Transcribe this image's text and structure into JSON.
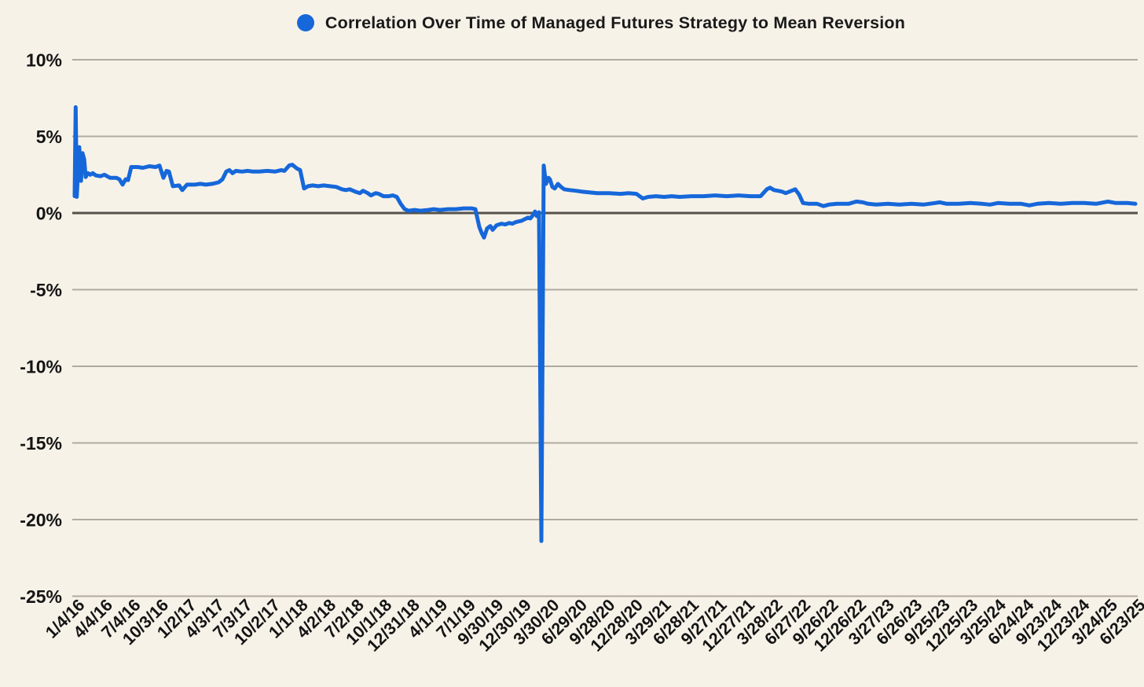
{
  "page": {
    "background": "#f7f2e8"
  },
  "legend": {
    "marker": "circle",
    "label": "Correlation Over Time of Managed Futures Strategy to Mean Reversion"
  },
  "chart_data": {
    "type": "line",
    "title": "Correlation Over Time of Managed Futures Strategy to Mean Reversion",
    "legend_position": "top-center",
    "grid": true,
    "x_axis": {
      "range": [
        "1/4/16",
        "6/23/25"
      ],
      "tick_labels": [
        "1/4/16",
        "4/4/16",
        "7/4/16",
        "10/3/16",
        "1/2/17",
        "4/3/17",
        "7/3/17",
        "10/2/17",
        "1/1/18",
        "4/2/18",
        "7/2/18",
        "10/1/18",
        "12/31/18",
        "4/1/19",
        "7/1/19",
        "9/30/19",
        "12/30/19",
        "3/30/20",
        "6/29/20",
        "9/28/20",
        "12/28/20",
        "3/29/21",
        "6/28/21",
        "9/27/21",
        "12/27/21",
        "3/28/22",
        "6/27/22",
        "9/26/22",
        "12/26/22",
        "3/27/23",
        "6/26/23",
        "9/25/23",
        "12/25/23",
        "3/25/24",
        "6/24/24",
        "9/23/24",
        "12/23/24",
        "3/24/25",
        "6/23/25"
      ]
    },
    "y_axis": {
      "unit": "%",
      "lim": [
        -25,
        10
      ],
      "ticks": [
        {
          "value": 10,
          "label": "10%"
        },
        {
          "value": 5,
          "label": "5%"
        },
        {
          "value": 0,
          "label": "0%"
        },
        {
          "value": -5,
          "label": "-5%"
        },
        {
          "value": -10,
          "label": "-10%"
        },
        {
          "value": -15,
          "label": "-15%"
        },
        {
          "value": -20,
          "label": "-20%"
        },
        {
          "value": -25,
          "label": "-25%"
        }
      ]
    },
    "colors": {
      "line": "#1667d9",
      "gridline": "#b0aaa0",
      "zero_line": "#55524c",
      "text": "#141414",
      "background": "#f7f2e8"
    },
    "series": [
      {
        "name": "Correlation Over Time of Managed Futures Strategy to Mean Reversion",
        "color": "#1667d9",
        "points_format": "[x_fraction_of_time_axis_1/4/16_to_6/23/25, correlation_percent]",
        "points": [
          [
            0.0,
            1.1
          ],
          [
            0.001,
            6.9
          ],
          [
            0.002,
            1.05
          ],
          [
            0.0044,
            4.3
          ],
          [
            0.006,
            2.1
          ],
          [
            0.0074,
            3.9
          ],
          [
            0.009,
            3.5
          ],
          [
            0.0104,
            2.35
          ],
          [
            0.0126,
            2.6
          ],
          [
            0.0148,
            2.5
          ],
          [
            0.017,
            2.6
          ],
          [
            0.02,
            2.45
          ],
          [
            0.0244,
            2.4
          ],
          [
            0.0281,
            2.5
          ],
          [
            0.0333,
            2.3
          ],
          [
            0.0393,
            2.3
          ],
          [
            0.0422,
            2.2
          ],
          [
            0.0452,
            1.85
          ],
          [
            0.0481,
            2.2
          ],
          [
            0.0504,
            2.15
          ],
          [
            0.0533,
            3.0
          ],
          [
            0.0593,
            3.0
          ],
          [
            0.0644,
            2.95
          ],
          [
            0.0704,
            3.05
          ],
          [
            0.0763,
            3.0
          ],
          [
            0.08,
            3.1
          ],
          [
            0.0837,
            2.3
          ],
          [
            0.0867,
            2.75
          ],
          [
            0.0889,
            2.7
          ],
          [
            0.0926,
            1.75
          ],
          [
            0.0985,
            1.8
          ],
          [
            0.1015,
            1.5
          ],
          [
            0.1059,
            1.85
          ],
          [
            0.1133,
            1.85
          ],
          [
            0.1185,
            1.9
          ],
          [
            0.1237,
            1.85
          ],
          [
            0.1296,
            1.9
          ],
          [
            0.1356,
            2.0
          ],
          [
            0.1393,
            2.2
          ],
          [
            0.143,
            2.7
          ],
          [
            0.1459,
            2.8
          ],
          [
            0.1489,
            2.6
          ],
          [
            0.1519,
            2.75
          ],
          [
            0.1578,
            2.7
          ],
          [
            0.163,
            2.75
          ],
          [
            0.1681,
            2.7
          ],
          [
            0.1741,
            2.7
          ],
          [
            0.1815,
            2.75
          ],
          [
            0.1889,
            2.7
          ],
          [
            0.1948,
            2.8
          ],
          [
            0.1978,
            2.75
          ],
          [
            0.2022,
            3.1
          ],
          [
            0.2052,
            3.15
          ],
          [
            0.2096,
            2.9
          ],
          [
            0.2126,
            2.8
          ],
          [
            0.2163,
            1.6
          ],
          [
            0.22,
            1.75
          ],
          [
            0.2244,
            1.8
          ],
          [
            0.2296,
            1.75
          ],
          [
            0.2348,
            1.8
          ],
          [
            0.2407,
            1.75
          ],
          [
            0.2467,
            1.7
          ],
          [
            0.2519,
            1.55
          ],
          [
            0.2556,
            1.5
          ],
          [
            0.2593,
            1.55
          ],
          [
            0.2644,
            1.4
          ],
          [
            0.2689,
            1.3
          ],
          [
            0.2719,
            1.45
          ],
          [
            0.2763,
            1.3
          ],
          [
            0.2793,
            1.15
          ],
          [
            0.2837,
            1.3
          ],
          [
            0.2867,
            1.25
          ],
          [
            0.2911,
            1.1
          ],
          [
            0.2963,
            1.1
          ],
          [
            0.3,
            1.15
          ],
          [
            0.3037,
            1.05
          ],
          [
            0.3074,
            0.6
          ],
          [
            0.3111,
            0.25
          ],
          [
            0.3148,
            0.15
          ],
          [
            0.3207,
            0.2
          ],
          [
            0.3259,
            0.15
          ],
          [
            0.3333,
            0.2
          ],
          [
            0.3385,
            0.25
          ],
          [
            0.3444,
            0.2
          ],
          [
            0.3519,
            0.25
          ],
          [
            0.3593,
            0.25
          ],
          [
            0.3667,
            0.3
          ],
          [
            0.3741,
            0.3
          ],
          [
            0.3778,
            0.25
          ],
          [
            0.3815,
            -0.9
          ],
          [
            0.3837,
            -1.3
          ],
          [
            0.3859,
            -1.6
          ],
          [
            0.3889,
            -1.0
          ],
          [
            0.3919,
            -0.85
          ],
          [
            0.3941,
            -1.1
          ],
          [
            0.3978,
            -0.8
          ],
          [
            0.4022,
            -0.7
          ],
          [
            0.4059,
            -0.75
          ],
          [
            0.4096,
            -0.65
          ],
          [
            0.4126,
            -0.7
          ],
          [
            0.4156,
            -0.6
          ],
          [
            0.4185,
            -0.55
          ],
          [
            0.4215,
            -0.5
          ],
          [
            0.4244,
            -0.4
          ],
          [
            0.4274,
            -0.3
          ],
          [
            0.4296,
            -0.35
          ],
          [
            0.4319,
            -0.15
          ],
          [
            0.4341,
            0.1
          ],
          [
            0.4356,
            -0.2
          ],
          [
            0.4378,
            0.05
          ],
          [
            0.44,
            -21.4
          ],
          [
            0.4422,
            3.1
          ],
          [
            0.4444,
            1.9
          ],
          [
            0.4467,
            2.3
          ],
          [
            0.4481,
            2.2
          ],
          [
            0.4504,
            1.7
          ],
          [
            0.4526,
            1.6
          ],
          [
            0.4556,
            1.9
          ],
          [
            0.4585,
            1.7
          ],
          [
            0.4615,
            1.55
          ],
          [
            0.4667,
            1.5
          ],
          [
            0.4726,
            1.45
          ],
          [
            0.4778,
            1.4
          ],
          [
            0.4852,
            1.35
          ],
          [
            0.4926,
            1.3
          ],
          [
            0.5037,
            1.3
          ],
          [
            0.5148,
            1.25
          ],
          [
            0.5222,
            1.3
          ],
          [
            0.5296,
            1.25
          ],
          [
            0.5356,
            0.95
          ],
          [
            0.5407,
            1.05
          ],
          [
            0.5481,
            1.1
          ],
          [
            0.5556,
            1.05
          ],
          [
            0.563,
            1.1
          ],
          [
            0.5704,
            1.05
          ],
          [
            0.5815,
            1.1
          ],
          [
            0.5926,
            1.1
          ],
          [
            0.6037,
            1.15
          ],
          [
            0.6148,
            1.1
          ],
          [
            0.6259,
            1.15
          ],
          [
            0.637,
            1.1
          ],
          [
            0.6467,
            1.1
          ],
          [
            0.6526,
            1.55
          ],
          [
            0.6556,
            1.65
          ],
          [
            0.6593,
            1.5
          ],
          [
            0.663,
            1.45
          ],
          [
            0.6667,
            1.4
          ],
          [
            0.6704,
            1.3
          ],
          [
            0.6741,
            1.4
          ],
          [
            0.6793,
            1.55
          ],
          [
            0.683,
            1.2
          ],
          [
            0.6867,
            0.65
          ],
          [
            0.6926,
            0.6
          ],
          [
            0.7,
            0.6
          ],
          [
            0.7059,
            0.45
          ],
          [
            0.7111,
            0.55
          ],
          [
            0.7185,
            0.6
          ],
          [
            0.7296,
            0.6
          ],
          [
            0.737,
            0.75
          ],
          [
            0.743,
            0.7
          ],
          [
            0.7481,
            0.6
          ],
          [
            0.7556,
            0.55
          ],
          [
            0.7667,
            0.6
          ],
          [
            0.7778,
            0.55
          ],
          [
            0.7889,
            0.6
          ],
          [
            0.8,
            0.55
          ],
          [
            0.8111,
            0.65
          ],
          [
            0.8156,
            0.7
          ],
          [
            0.8222,
            0.6
          ],
          [
            0.8333,
            0.6
          ],
          [
            0.8444,
            0.65
          ],
          [
            0.8556,
            0.6
          ],
          [
            0.863,
            0.55
          ],
          [
            0.8704,
            0.65
          ],
          [
            0.8815,
            0.6
          ],
          [
            0.8926,
            0.6
          ],
          [
            0.9,
            0.5
          ],
          [
            0.9074,
            0.6
          ],
          [
            0.9185,
            0.65
          ],
          [
            0.9296,
            0.6
          ],
          [
            0.9407,
            0.65
          ],
          [
            0.9519,
            0.65
          ],
          [
            0.963,
            0.6
          ],
          [
            0.9704,
            0.7
          ],
          [
            0.9741,
            0.75
          ],
          [
            0.9815,
            0.65
          ],
          [
            0.9926,
            0.65
          ],
          [
            1.0,
            0.6
          ]
        ]
      }
    ]
  }
}
